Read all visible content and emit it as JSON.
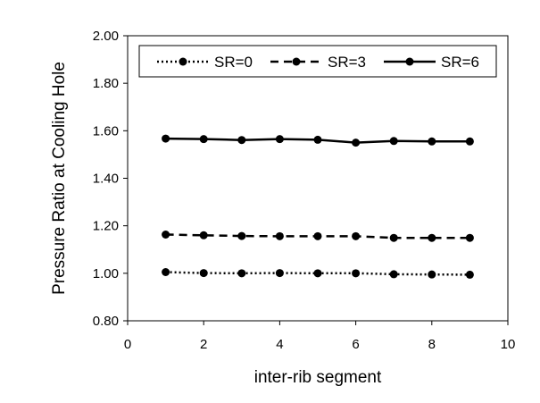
{
  "chart_data": {
    "type": "line",
    "title": "",
    "xlabel": "inter-rib segment",
    "ylabel": "Pressure Ratio at Cooling Hole",
    "xlim": [
      0,
      10
    ],
    "ylim": [
      0.8,
      2.0
    ],
    "xticks": [
      0,
      2,
      4,
      6,
      8,
      10
    ],
    "yticks": [
      0.8,
      1.0,
      1.2,
      1.4,
      1.6,
      1.8,
      2.0
    ],
    "xtick_labels": [
      "0",
      "2",
      "4",
      "6",
      "8",
      "10"
    ],
    "ytick_labels": [
      "0.80",
      "1.00",
      "1.20",
      "1.40",
      "1.60",
      "1.80",
      "2.00"
    ],
    "grid": false,
    "legend_position": "top",
    "x": [
      1,
      2,
      3,
      4,
      5,
      6,
      7,
      8,
      9
    ],
    "series": [
      {
        "name": "SR=0",
        "line_style": "dotted",
        "color": "#000000",
        "values": [
          1.005,
          1.001,
          1.0,
          1.001,
          1.0,
          1.0,
          0.996,
          0.995,
          0.994
        ]
      },
      {
        "name": "SR=3",
        "line_style": "dashed",
        "color": "#000000",
        "values": [
          1.163,
          1.16,
          1.157,
          1.156,
          1.156,
          1.156,
          1.149,
          1.149,
          1.149
        ]
      },
      {
        "name": "SR=6",
        "line_style": "solid",
        "color": "#000000",
        "values": [
          1.567,
          1.565,
          1.561,
          1.565,
          1.562,
          1.55,
          1.557,
          1.555,
          1.555
        ]
      }
    ]
  }
}
